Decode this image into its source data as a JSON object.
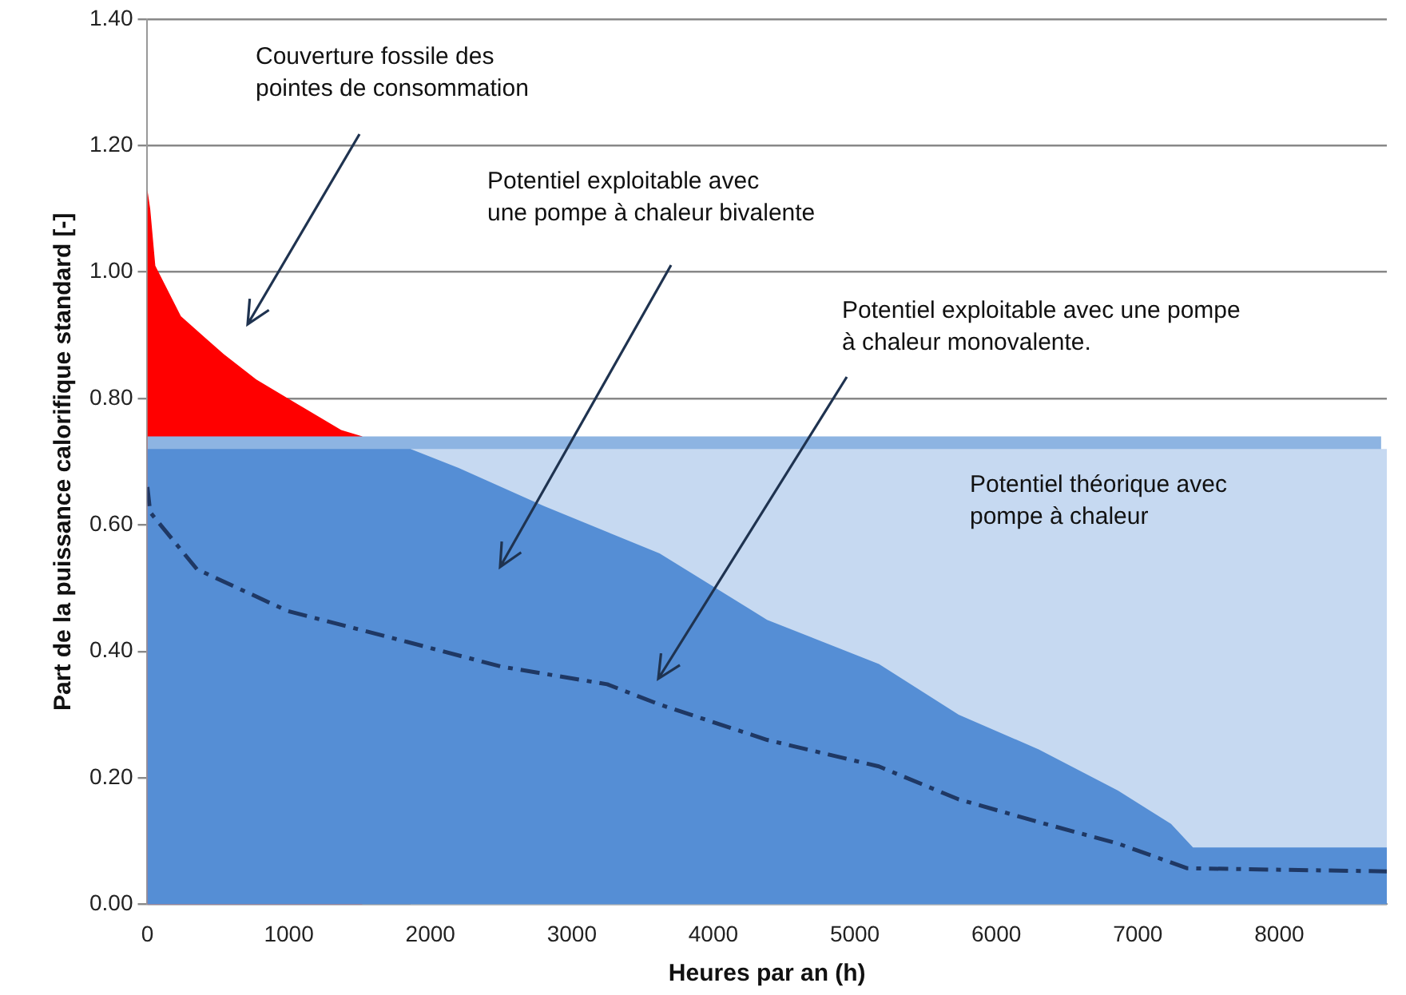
{
  "chart_data": {
    "type": "area",
    "xlabel": "Heures par an (h)",
    "ylabel": "Part de la puissance calorifique standard [-]",
    "xlim": [
      0,
      8760
    ],
    "xticks": [
      0,
      1000,
      2000,
      3000,
      4000,
      5000,
      6000,
      7000,
      8000
    ],
    "ylim": [
      0,
      1.4
    ],
    "yticks": [
      {
        "value": 0,
        "label": "0.00"
      },
      {
        "value": 0.2,
        "label": "0.20"
      },
      {
        "value": 0.4,
        "label": "0.40"
      },
      {
        "value": 0.6,
        "label": "0.60"
      },
      {
        "value": 0.8,
        "label": "0.80"
      },
      {
        "value": 1.0,
        "label": "1.00"
      },
      {
        "value": 1.2,
        "label": "1.20"
      },
      {
        "value": 1.4,
        "label": "1.40"
      }
    ],
    "grid": "y",
    "legend": false,
    "marker": "none",
    "series": [
      {
        "color": "#ff0000",
        "x": [
          0,
          20,
          56,
          237,
          540,
          770,
          1070,
          1370,
          1520
        ],
        "values": [
          1.13,
          1.1,
          1.01,
          0.93,
          0.87,
          0.83,
          0.79,
          0.75,
          0.74
        ]
      },
      {
        "color": "#8db4e2",
        "x": [
          0,
          8720
        ],
        "values": [
          0.74,
          0.74
        ]
      },
      {
        "color": "#c6d9f1",
        "x": [
          1860,
          8760
        ],
        "values": [
          0.72,
          0.72
        ]
      },
      {
        "color": "#558ed5",
        "x": [
          0,
          1860,
          2200,
          2800,
          3620,
          4380,
          5170,
          5734,
          6300,
          6860,
          7235,
          7390,
          8760
        ],
        "values": [
          0.72,
          0.72,
          0.69,
          0.63,
          0.555,
          0.45,
          0.38,
          0.3,
          0.245,
          0.18,
          0.127,
          0.09,
          0.09
        ]
      },
      {
        "type": "line",
        "color": "#1f3864",
        "line_style": "dashed",
        "x": [
          0,
          20,
          350,
          990,
          1750,
          2500,
          3250,
          3620,
          4380,
          5170,
          5734,
          6300,
          6860,
          7350,
          8760
        ],
        "values": [
          0.66,
          0.62,
          0.53,
          0.464,
          0.42,
          0.376,
          0.348,
          0.316,
          0.26,
          0.218,
          0.166,
          0.13,
          0.096,
          0.057,
          0.052
        ]
      }
    ],
    "annotations": [
      "Couverture fossile des\npointes de consommation",
      "Potentiel exploitable avec\nune pompe à chaleur bivalente",
      "Potentiel exploitable avec une pompe\nà chaleur monovalente.",
      "Potentiel théorique avec\npompe à chaleur"
    ]
  }
}
